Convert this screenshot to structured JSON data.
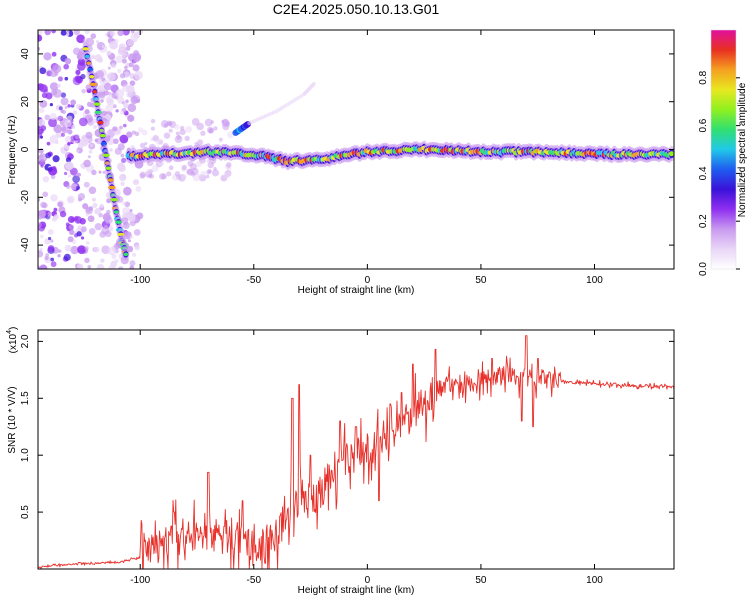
{
  "title": "C2E4.2025.050.10.13.G01",
  "colors": {
    "snr_line": "#e8302a",
    "background": "#ffffff",
    "colormap": [
      "#ffffff",
      "#e9d6f7",
      "#c99af0",
      "#8f2ff0",
      "#3a12d8",
      "#1f5cf0",
      "#20c8e8",
      "#30e070",
      "#90f020",
      "#e8e820",
      "#f5a020",
      "#e83020",
      "#e010a0"
    ]
  },
  "chart_data": [
    {
      "type": "heatmap",
      "xlabel": "Height of straight line (km)",
      "ylabel": "Frequency (Hz)",
      "xlim": [
        -145,
        135
      ],
      "ylim": [
        -50,
        50
      ],
      "xticks": [
        -100,
        -50,
        0,
        50,
        100
      ],
      "yticks": [
        -40,
        -20,
        0,
        20,
        40
      ],
      "grid": false,
      "colorbar": {
        "label": "Normalized spectral amplitude",
        "range": [
          0.0,
          1.0
        ],
        "ticks": [
          0.0,
          0.2,
          0.4,
          0.6,
          0.8
        ]
      },
      "features": {
        "descending_trace": [
          [
            -124,
            42
          ],
          [
            -120,
            24
          ],
          [
            -117,
            8
          ],
          [
            -114,
            -8
          ],
          [
            -111,
            -24
          ],
          [
            -108,
            -38
          ],
          [
            -106,
            -45
          ]
        ],
        "main_trace": [
          [
            -105,
            -3
          ],
          [
            -90,
            -2
          ],
          [
            -70,
            -1
          ],
          [
            -50,
            -2
          ],
          [
            -35,
            -5
          ],
          [
            -20,
            -4
          ],
          [
            0,
            -1
          ],
          [
            25,
            0
          ],
          [
            50,
            -1
          ],
          [
            80,
            -1
          ],
          [
            100,
            -2
          ],
          [
            135,
            -2
          ]
        ],
        "upper_branch": [
          [
            -58,
            7
          ],
          [
            -52,
            11
          ],
          [
            -40,
            16
          ],
          [
            -28,
            23
          ],
          [
            -23,
            28
          ]
        ],
        "noise_region_x": [
          -145,
          -100
        ]
      }
    },
    {
      "type": "line",
      "xlabel": "Height of straight line (km)",
      "ylabel": "SNR (10 * V/V)",
      "y_multiplier_label": "(x10",
      "y_multiplier_exp": "4",
      "xlim": [
        -145,
        135
      ],
      "ylim": [
        0,
        2.1
      ],
      "xticks": [
        -100,
        -50,
        0,
        50,
        100
      ],
      "yticks": [
        0.5,
        1.0,
        1.5,
        2.0
      ],
      "grid": false,
      "series": [
        {
          "x": [
            -145,
            -130,
            -110,
            -100,
            -95,
            -90,
            -85,
            -80,
            -75,
            -70,
            -65,
            -60,
            -55,
            -50,
            -45,
            -40,
            -35,
            -30,
            -25,
            -20,
            -15,
            -10,
            -5,
            0,
            5,
            10,
            15,
            20,
            25,
            30,
            35,
            40,
            50,
            60,
            70,
            80,
            90,
            100,
            110,
            120,
            135
          ],
          "values": [
            0.02,
            0.04,
            0.06,
            0.1,
            0.15,
            0.22,
            0.28,
            0.25,
            0.3,
            0.36,
            0.25,
            0.3,
            0.22,
            0.18,
            0.2,
            0.3,
            0.45,
            0.6,
            0.6,
            0.7,
            0.85,
            0.95,
            1.0,
            1.05,
            1.12,
            1.2,
            1.28,
            1.35,
            1.45,
            1.58,
            1.63,
            1.62,
            1.66,
            1.7,
            1.68,
            1.66,
            1.64,
            1.63,
            1.62,
            1.61,
            1.6
          ],
          "spikes": [
            [
              -85,
              0.5
            ],
            [
              -70,
              0.85
            ],
            [
              -55,
              0.6
            ],
            [
              -33,
              1.5
            ],
            [
              -30,
              1.62
            ],
            [
              -25,
              1.0
            ],
            [
              -12,
              1.3
            ],
            [
              -5,
              1.25
            ],
            [
              10,
              1.45
            ],
            [
              15,
              1.55
            ],
            [
              20,
              1.8
            ],
            [
              30,
              1.93
            ],
            [
              55,
              1.85
            ],
            [
              70,
              2.05
            ],
            [
              75,
              1.85
            ]
          ],
          "dips": [
            [
              -45,
              0.05
            ],
            [
              5,
              0.6
            ],
            [
              68,
              1.3
            ],
            [
              73,
              1.25
            ]
          ]
        }
      ]
    }
  ]
}
